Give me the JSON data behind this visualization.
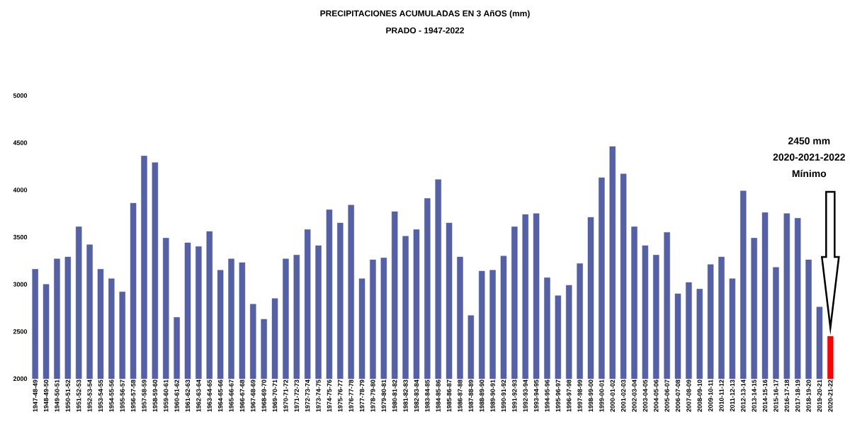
{
  "chart_data": {
    "type": "bar",
    "title": "PRECIPITACIONES  ACUMULADAS EN 3 AñOS (mm)",
    "subtitle": "PRADO - 1947-2022",
    "categories": [
      "1947-48-49",
      "1948-49-50",
      "1949-50-51",
      "1950-51-52",
      "1951-52-53",
      "1952-53-54",
      "1953-54-55",
      "1954-55-56",
      "1955-56-57",
      "1956-57-58",
      "1957-58-59",
      "1958-59-60",
      "1959-60-61",
      "1960-61-62",
      "1961-62-63",
      "1962-63-64",
      "1963-64-65",
      "1964-65-66",
      "1965-66-67",
      "1966-67-68",
      "1967-68-69",
      "1968-69-70",
      "1969-70-71",
      "1970-71-72",
      "1971-72-73",
      "1972-73-74",
      "1973-74-75",
      "1974-75-76",
      "1975-76-77",
      "1976-77-78",
      "1977-78-79",
      "1978-79-80",
      "1979-80-81",
      "1980-81-82",
      "1981-82-83",
      "1982-83-84",
      "1983-84-85",
      "1984-85-86",
      "1985-86-87",
      "1986-87-88",
      "1987-88-89",
      "1988-89-90",
      "1989-90-91",
      "1990-91-92",
      "1991-92-93",
      "1992-93-94",
      "1993-94-95",
      "1994-95-96",
      "1995-96-97",
      "1996-97-98",
      "1997-98-99",
      "1998-99-00",
      "1999-00-01",
      "2000-01-02",
      "2001-02-03",
      "2002-03-04",
      "2003-04-05",
      "2004-05-06",
      "2005-06-07",
      "2006-07-08",
      "2007-08-09",
      "2008-09-10",
      "2009-10-11",
      "2010-11-12",
      "2011-12-13",
      "2012-13-14",
      "2013-14-15",
      "2014-15-16",
      "2015-16-17",
      "2016-17-18",
      "2017-18-19",
      "2018-19-20",
      "2019-20-21",
      "2020-21-22"
    ],
    "values": [
      3160,
      3000,
      3270,
      3290,
      3610,
      3420,
      3160,
      3060,
      2920,
      3860,
      4360,
      4290,
      3490,
      2650,
      3440,
      3400,
      3560,
      3150,
      3270,
      3230,
      2790,
      2630,
      2850,
      3270,
      3310,
      3580,
      3410,
      3790,
      3650,
      3840,
      3060,
      3260,
      3280,
      3770,
      3510,
      3580,
      3910,
      4110,
      3650,
      3290,
      2670,
      3140,
      3150,
      3300,
      3610,
      3740,
      3750,
      3070,
      2880,
      2990,
      3220,
      3710,
      4130,
      4460,
      4170,
      3610,
      3410,
      3310,
      3550,
      2900,
      3020,
      2950,
      3210,
      3290,
      3060,
      3990,
      3490,
      3760,
      3180,
      3750,
      3700,
      3260,
      2760,
      2450
    ],
    "colors": [
      "#5461a8",
      "#5461a8",
      "#5461a8",
      "#5461a8",
      "#5461a8",
      "#5461a8",
      "#5461a8",
      "#5461a8",
      "#5461a8",
      "#5461a8",
      "#5461a8",
      "#5461a8",
      "#5461a8",
      "#5461a8",
      "#5461a8",
      "#5461a8",
      "#5461a8",
      "#5461a8",
      "#5461a8",
      "#5461a8",
      "#5461a8",
      "#5461a8",
      "#5461a8",
      "#5461a8",
      "#5461a8",
      "#5461a8",
      "#5461a8",
      "#5461a8",
      "#5461a8",
      "#5461a8",
      "#5461a8",
      "#5461a8",
      "#5461a8",
      "#5461a8",
      "#5461a8",
      "#5461a8",
      "#5461a8",
      "#5461a8",
      "#5461a8",
      "#5461a8",
      "#5461a8",
      "#5461a8",
      "#5461a8",
      "#5461a8",
      "#5461a8",
      "#5461a8",
      "#5461a8",
      "#5461a8",
      "#5461a8",
      "#5461a8",
      "#5461a8",
      "#5461a8",
      "#5461a8",
      "#5461a8",
      "#5461a8",
      "#5461a8",
      "#5461a8",
      "#5461a8",
      "#5461a8",
      "#5461a8",
      "#5461a8",
      "#5461a8",
      "#5461a8",
      "#5461a8",
      "#5461a8",
      "#5461a8",
      "#5461a8",
      "#5461a8",
      "#5461a8",
      "#5461a8",
      "#5461a8",
      "#5461a8",
      "#5461a8",
      "#ff0000"
    ],
    "ylim": [
      2000,
      5000
    ],
    "yticks": [
      2000,
      2500,
      3000,
      3500,
      4000,
      4500,
      5000
    ],
    "grid": false,
    "annotations": [
      "2450 mm",
      "2020-2021-2022",
      "Mínimo"
    ]
  }
}
